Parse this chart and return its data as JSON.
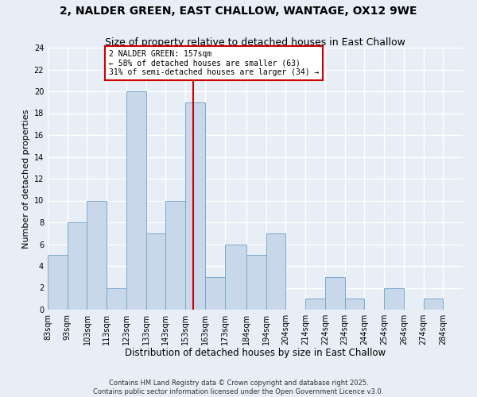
{
  "title": "2, NALDER GREEN, EAST CHALLOW, WANTAGE, OX12 9WE",
  "subtitle": "Size of property relative to detached houses in East Challow",
  "xlabel": "Distribution of detached houses by size in East Challow",
  "ylabel": "Number of detached properties",
  "bin_labels": [
    "83sqm",
    "93sqm",
    "103sqm",
    "113sqm",
    "123sqm",
    "133sqm",
    "143sqm",
    "153sqm",
    "163sqm",
    "173sqm",
    "184sqm",
    "194sqm",
    "204sqm",
    "214sqm",
    "224sqm",
    "234sqm",
    "244sqm",
    "254sqm",
    "264sqm",
    "274sqm",
    "284sqm"
  ],
  "bin_edges": [
    83,
    93,
    103,
    113,
    123,
    133,
    143,
    153,
    163,
    173,
    184,
    194,
    204,
    214,
    224,
    234,
    244,
    254,
    264,
    274,
    284,
    294
  ],
  "counts": [
    5,
    8,
    10,
    2,
    20,
    7,
    10,
    19,
    3,
    6,
    5,
    7,
    0,
    1,
    3,
    1,
    0,
    2,
    0,
    1,
    0
  ],
  "bar_color": "#c8d8ea",
  "bar_edgecolor": "#7aa8cc",
  "property_size": 157,
  "vline_color": "#cc0000",
  "annotation_text": "2 NALDER GREEN: 157sqm\n← 58% of detached houses are smaller (63)\n31% of semi-detached houses are larger (34) →",
  "annotation_box_edgecolor": "#cc0000",
  "annotation_box_facecolor": "#ffffff",
  "ylim": [
    0,
    24
  ],
  "yticks": [
    0,
    2,
    4,
    6,
    8,
    10,
    12,
    14,
    16,
    18,
    20,
    22,
    24
  ],
  "background_color": "#e8eef5",
  "grid_color": "#ffffff",
  "footer_text": "Contains HM Land Registry data © Crown copyright and database right 2025.\nContains public sector information licensed under the Open Government Licence v3.0.",
  "title_fontsize": 10,
  "subtitle_fontsize": 9,
  "xlabel_fontsize": 8.5,
  "ylabel_fontsize": 8,
  "tick_fontsize": 7,
  "footer_fontsize": 6,
  "annotation_fontsize": 7
}
